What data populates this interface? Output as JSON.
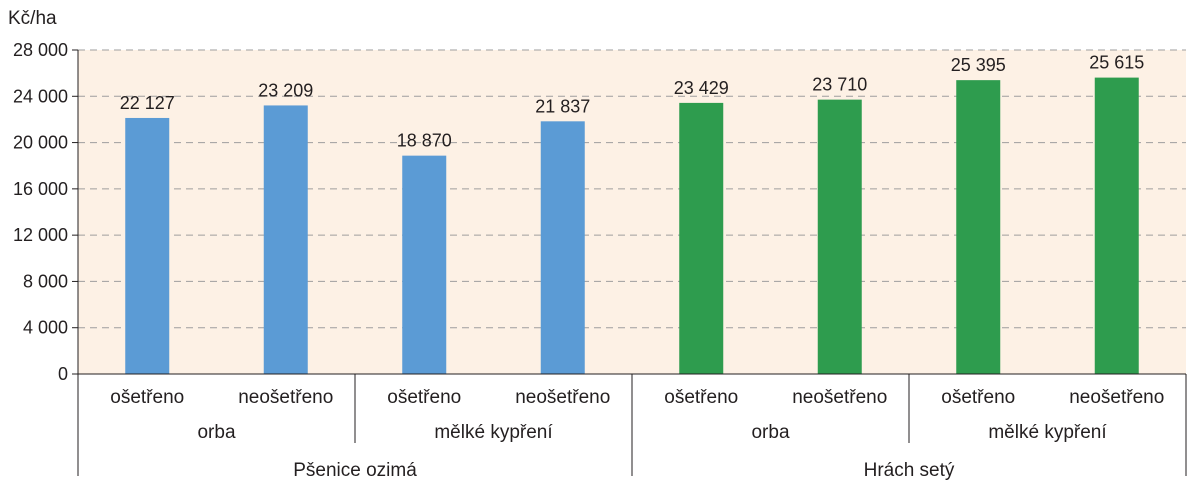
{
  "chart_data": {
    "type": "bar",
    "ylabel": "Kč/ha",
    "ylim": [
      0,
      28000
    ],
    "yticks": [
      0,
      4000,
      8000,
      12000,
      16000,
      20000,
      24000,
      28000
    ],
    "ytick_labels": [
      "0",
      "4 000",
      "8 000",
      "12 000",
      "16 000",
      "20 000",
      "24 000",
      "28 000"
    ],
    "grid": "horizontal dashed",
    "plot_background": "#fdf1e5",
    "bars": [
      {
        "crop": "Pšenice ozimá",
        "tillage": "orba",
        "treatment": "ošetřeno",
        "value": 22127,
        "label": "22 127",
        "color": "#5b9bd5"
      },
      {
        "crop": "Pšenice ozimá",
        "tillage": "orba",
        "treatment": "neošetřeno",
        "value": 23209,
        "label": "23 209",
        "color": "#5b9bd5"
      },
      {
        "crop": "Pšenice ozimá",
        "tillage": "mělké kypření",
        "treatment": "ošetřeno",
        "value": 18870,
        "label": "18 870",
        "color": "#5b9bd5"
      },
      {
        "crop": "Pšenice ozimá",
        "tillage": "mělké kypření",
        "treatment": "neošetřeno",
        "value": 21837,
        "label": "21 837",
        "color": "#5b9bd5"
      },
      {
        "crop": "Hrách setý",
        "tillage": "orba",
        "treatment": "ošetřeno",
        "value": 23429,
        "label": "23 429",
        "color": "#2e9c4e"
      },
      {
        "crop": "Hrách setý",
        "tillage": "orba",
        "treatment": "neošetřeno",
        "value": 23710,
        "label": "23 710",
        "color": "#2e9c4e"
      },
      {
        "crop": "Hrách setý",
        "tillage": "mělké kypření",
        "treatment": "ošetřeno",
        "value": 25395,
        "label": "25 395",
        "color": "#2e9c4e"
      },
      {
        "crop": "Hrách setý",
        "tillage": "mělké kypření",
        "treatment": "neošetřeno",
        "value": 25615,
        "label": "25 615",
        "color": "#2e9c4e"
      }
    ],
    "tillage_groups": [
      "orba",
      "mělké kypření",
      "orba",
      "mělké kypření"
    ],
    "crops": [
      "Pšenice ozimá",
      "Hrách setý"
    ]
  }
}
